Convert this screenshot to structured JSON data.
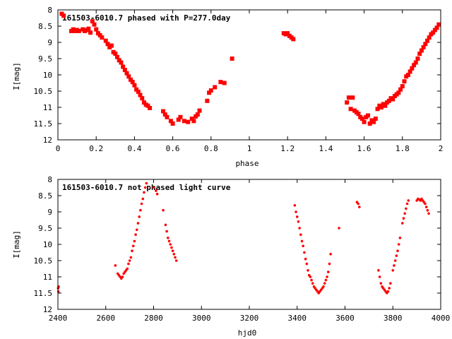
{
  "chart_data": [
    {
      "type": "scatter",
      "title": "161503-6010.7 phased with P=277.0day",
      "xlabel": "phase",
      "ylabel": "I[mag]",
      "xlim": [
        0,
        2
      ],
      "ylim": [
        12,
        8
      ],
      "y_inverted": true,
      "grid": false,
      "xticks": [
        "0",
        "0.2",
        "0.4",
        "0.6",
        "0.8",
        "1",
        "1.2",
        "1.4",
        "1.6",
        "1.8",
        "2"
      ],
      "yticks": [
        "8",
        "8.5",
        "9",
        "9.5",
        "10",
        "10.5",
        "11",
        "11.5",
        "12"
      ],
      "color": "#ff0000",
      "marker": "plus",
      "series": [
        {
          "name": "phased",
          "points": [
            [
              0.02,
              8.12
            ],
            [
              0.03,
              8.18
            ],
            [
              0.07,
              8.65
            ],
            [
              0.08,
              8.6
            ],
            [
              0.09,
              8.65
            ],
            [
              0.1,
              8.62
            ],
            [
              0.11,
              8.65
            ],
            [
              0.13,
              8.6
            ],
            [
              0.14,
              8.65
            ],
            [
              0.15,
              8.62
            ],
            [
              0.16,
              8.58
            ],
            [
              0.17,
              8.7
            ],
            [
              0.18,
              8.35
            ],
            [
              0.19,
              8.45
            ],
            [
              0.2,
              8.6
            ],
            [
              0.21,
              8.72
            ],
            [
              0.22,
              8.78
            ],
            [
              0.23,
              8.85
            ],
            [
              0.25,
              8.95
            ],
            [
              0.26,
              9.05
            ],
            [
              0.27,
              9.15
            ],
            [
              0.28,
              9.1
            ],
            [
              0.29,
              9.3
            ],
            [
              0.3,
              9.35
            ],
            [
              0.31,
              9.45
            ],
            [
              0.32,
              9.55
            ],
            [
              0.33,
              9.62
            ],
            [
              0.34,
              9.75
            ],
            [
              0.35,
              9.85
            ],
            [
              0.36,
              9.95
            ],
            [
              0.37,
              10.05
            ],
            [
              0.38,
              10.15
            ],
            [
              0.39,
              10.22
            ],
            [
              0.4,
              10.32
            ],
            [
              0.41,
              10.45
            ],
            [
              0.42,
              10.52
            ],
            [
              0.43,
              10.62
            ],
            [
              0.44,
              10.72
            ],
            [
              0.45,
              10.85
            ],
            [
              0.46,
              10.92
            ],
            [
              0.47,
              10.95
            ],
            [
              0.48,
              11.02
            ],
            [
              0.55,
              11.12
            ],
            [
              0.56,
              11.22
            ],
            [
              0.57,
              11.3
            ],
            [
              0.59,
              11.42
            ],
            [
              0.6,
              11.5
            ],
            [
              0.63,
              11.38
            ],
            [
              0.64,
              11.3
            ],
            [
              0.66,
              11.42
            ],
            [
              0.68,
              11.45
            ],
            [
              0.7,
              11.35
            ],
            [
              0.71,
              11.42
            ],
            [
              0.72,
              11.28
            ],
            [
              0.73,
              11.22
            ],
            [
              0.74,
              11.1
            ],
            [
              0.78,
              10.8
            ],
            [
              0.79,
              10.55
            ],
            [
              0.8,
              10.48
            ],
            [
              0.82,
              10.38
            ],
            [
              0.85,
              10.22
            ],
            [
              0.87,
              10.25
            ],
            [
              0.91,
              9.5
            ],
            [
              1.18,
              8.72
            ],
            [
              1.19,
              8.75
            ],
            [
              1.2,
              8.72
            ],
            [
              1.21,
              8.8
            ],
            [
              1.22,
              8.85
            ],
            [
              1.23,
              8.9
            ],
            [
              1.51,
              10.85
            ],
            [
              1.52,
              10.7
            ],
            [
              1.53,
              11.05
            ],
            [
              1.54,
              10.7
            ],
            [
              1.55,
              11.1
            ],
            [
              1.56,
              11.15
            ],
            [
              1.57,
              11.2
            ],
            [
              1.58,
              11.3
            ],
            [
              1.59,
              11.35
            ],
            [
              1.6,
              11.45
            ],
            [
              1.61,
              11.3
            ],
            [
              1.62,
              11.25
            ],
            [
              1.63,
              11.5
            ],
            [
              1.64,
              11.4
            ],
            [
              1.65,
              11.45
            ],
            [
              1.66,
              11.35
            ],
            [
              1.67,
              11.05
            ],
            [
              1.68,
              10.95
            ],
            [
              1.69,
              11.0
            ],
            [
              1.7,
              10.9
            ],
            [
              1.71,
              10.95
            ],
            [
              1.72,
              10.85
            ],
            [
              1.73,
              10.8
            ],
            [
              1.74,
              10.72
            ],
            [
              1.75,
              10.75
            ],
            [
              1.76,
              10.65
            ],
            [
              1.77,
              10.6
            ],
            [
              1.78,
              10.55
            ],
            [
              1.79,
              10.45
            ],
            [
              1.8,
              10.35
            ],
            [
              1.81,
              10.2
            ],
            [
              1.82,
              10.05
            ],
            [
              1.83,
              10.0
            ],
            [
              1.84,
              9.9
            ],
            [
              1.85,
              9.8
            ],
            [
              1.86,
              9.7
            ],
            [
              1.87,
              9.62
            ],
            [
              1.88,
              9.5
            ],
            [
              1.89,
              9.35
            ],
            [
              1.9,
              9.25
            ],
            [
              1.91,
              9.15
            ],
            [
              1.92,
              9.05
            ],
            [
              1.93,
              8.95
            ],
            [
              1.94,
              8.85
            ],
            [
              1.95,
              8.75
            ],
            [
              1.96,
              8.7
            ],
            [
              1.97,
              8.62
            ],
            [
              1.98,
              8.55
            ],
            [
              1.99,
              8.45
            ]
          ]
        }
      ]
    },
    {
      "type": "scatter",
      "title": "161503-6010.7 not phased light curve",
      "xlabel": "hjd0",
      "ylabel": "I[mag]",
      "xlim": [
        2400,
        4000
      ],
      "ylim": [
        12,
        8
      ],
      "y_inverted": true,
      "grid": false,
      "xticks": [
        "2400",
        "2600",
        "2800",
        "3000",
        "3200",
        "3400",
        "3600",
        "3800",
        "4000"
      ],
      "yticks": [
        "8",
        "8.5",
        "9",
        "9.5",
        "10",
        "10.5",
        "11",
        "11.5",
        "12"
      ],
      "color": "#ff0000",
      "marker": "dot",
      "series": [
        {
          "name": "light curve",
          "points": [
            [
              2401,
              11.35
            ],
            [
              2402,
              11.45
            ],
            [
              2403,
              11.3
            ],
            [
              2640,
              10.65
            ],
            [
              2650,
              10.9
            ],
            [
              2655,
              10.95
            ],
            [
              2660,
              11.0
            ],
            [
              2665,
              11.05
            ],
            [
              2670,
              11.0
            ],
            [
              2675,
              10.9
            ],
            [
              2680,
              10.85
            ],
            [
              2685,
              10.8
            ],
            [
              2690,
              10.75
            ],
            [
              2695,
              10.6
            ],
            [
              2700,
              10.5
            ],
            [
              2705,
              10.4
            ],
            [
              2710,
              10.2
            ],
            [
              2715,
              10.05
            ],
            [
              2720,
              9.9
            ],
            [
              2725,
              9.7
            ],
            [
              2730,
              9.55
            ],
            [
              2735,
              9.35
            ],
            [
              2740,
              9.15
            ],
            [
              2745,
              8.95
            ],
            [
              2750,
              8.75
            ],
            [
              2755,
              8.6
            ],
            [
              2760,
              8.4
            ],
            [
              2765,
              8.25
            ],
            [
              2770,
              8.12
            ],
            [
              2800,
              8.25
            ],
            [
              2810,
              8.35
            ],
            [
              2815,
              8.45
            ],
            [
              2840,
              8.95
            ],
            [
              2850,
              9.4
            ],
            [
              2855,
              9.6
            ],
            [
              2860,
              9.8
            ],
            [
              2865,
              9.9
            ],
            [
              2870,
              10.0
            ],
            [
              2875,
              10.1
            ],
            [
              2880,
              10.2
            ],
            [
              2885,
              10.3
            ],
            [
              2890,
              10.4
            ],
            [
              2895,
              10.5
            ],
            [
              3390,
              8.8
            ],
            [
              3395,
              9.0
            ],
            [
              3400,
              9.15
            ],
            [
              3405,
              9.3
            ],
            [
              3410,
              9.5
            ],
            [
              3415,
              9.7
            ],
            [
              3420,
              9.9
            ],
            [
              3425,
              10.05
            ],
            [
              3430,
              10.25
            ],
            [
              3435,
              10.45
            ],
            [
              3440,
              10.6
            ],
            [
              3445,
              10.8
            ],
            [
              3450,
              10.95
            ],
            [
              3455,
              11.0
            ],
            [
              3460,
              11.1
            ],
            [
              3465,
              11.2
            ],
            [
              3470,
              11.3
            ],
            [
              3475,
              11.35
            ],
            [
              3480,
              11.4
            ],
            [
              3485,
              11.45
            ],
            [
              3490,
              11.5
            ],
            [
              3495,
              11.45
            ],
            [
              3500,
              11.4
            ],
            [
              3505,
              11.35
            ],
            [
              3510,
              11.3
            ],
            [
              3515,
              11.2
            ],
            [
              3520,
              11.1
            ],
            [
              3525,
              11.0
            ],
            [
              3530,
              10.85
            ],
            [
              3535,
              10.6
            ],
            [
              3540,
              10.3
            ],
            [
              3575,
              9.5
            ],
            [
              3650,
              8.7
            ],
            [
              3655,
              8.75
            ],
            [
              3660,
              8.85
            ],
            [
              3740,
              10.8
            ],
            [
              3745,
              11.0
            ],
            [
              3750,
              11.2
            ],
            [
              3755,
              11.3
            ],
            [
              3760,
              11.35
            ],
            [
              3765,
              11.4
            ],
            [
              3770,
              11.45
            ],
            [
              3775,
              11.5
            ],
            [
              3780,
              11.45
            ],
            [
              3785,
              11.35
            ],
            [
              3790,
              11.2
            ],
            [
              3800,
              10.8
            ],
            [
              3805,
              10.65
            ],
            [
              3810,
              10.5
            ],
            [
              3815,
              10.35
            ],
            [
              3820,
              10.2
            ],
            [
              3825,
              10.0
            ],
            [
              3830,
              9.8
            ],
            [
              3840,
              9.35
            ],
            [
              3845,
              9.2
            ],
            [
              3850,
              9.05
            ],
            [
              3855,
              8.9
            ],
            [
              3860,
              8.75
            ],
            [
              3865,
              8.65
            ],
            [
              3900,
              8.65
            ],
            [
              3905,
              8.6
            ],
            [
              3910,
              8.62
            ],
            [
              3915,
              8.65
            ],
            [
              3920,
              8.6
            ],
            [
              3925,
              8.65
            ],
            [
              3930,
              8.7
            ],
            [
              3935,
              8.75
            ],
            [
              3940,
              8.85
            ],
            [
              3945,
              8.95
            ],
            [
              3950,
              9.05
            ]
          ]
        }
      ]
    }
  ]
}
